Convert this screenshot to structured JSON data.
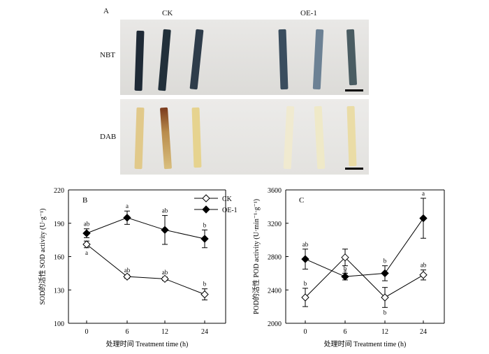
{
  "panel_a": {
    "label": "A",
    "group_ck": "CK",
    "group_oe": "OE-1",
    "row_nbt": "NBT",
    "row_dab": "DAB"
  },
  "chart_data": [
    {
      "panel": "B",
      "type": "line",
      "x": [
        0,
        6,
        12,
        24
      ],
      "categories": [
        "0",
        "6",
        "12",
        "24"
      ],
      "xlabel": "处理时间 Treatment time (h)",
      "ylabel": "SOD的活性 SOD activity (U·g⁻¹)",
      "ylim": [
        100,
        220
      ],
      "yticks": [
        100,
        130,
        160,
        190,
        220
      ],
      "legend": {
        "placement": "top-right",
        "entries": [
          "CK",
          "OE-1"
        ]
      },
      "series": [
        {
          "name": "CK",
          "marker": "open-diamond",
          "values": [
            171,
            142,
            140,
            126
          ],
          "errors": [
            3,
            1.5,
            1.5,
            5
          ],
          "letters": [
            "a",
            "ab",
            "ab",
            "b"
          ],
          "letter_pos": [
            "below",
            "above",
            "above",
            "above"
          ]
        },
        {
          "name": "OE-1",
          "marker": "filled-diamond",
          "values": [
            181,
            195,
            184,
            176
          ],
          "errors": [
            4,
            6,
            13,
            8
          ],
          "letters": [
            "ab",
            "a",
            "ab",
            "b"
          ],
          "letter_pos": [
            "above",
            "above",
            "above",
            "above"
          ]
        }
      ]
    },
    {
      "panel": "C",
      "type": "line",
      "x": [
        0,
        6,
        12,
        24
      ],
      "categories": [
        "0",
        "6",
        "12",
        "24"
      ],
      "xlabel": "处理时间 Treatment time (h)",
      "ylabel": "POD的活性 POD activity (U·min⁻¹·g⁻¹)",
      "ylim": [
        2000,
        3600
      ],
      "yticks": [
        2000,
        2400,
        2800,
        3200,
        3600
      ],
      "series": [
        {
          "name": "CK",
          "marker": "open-diamond",
          "values": [
            2310,
            2790,
            2310,
            2580
          ],
          "errors": [
            110,
            100,
            120,
            60
          ],
          "letters": [
            "b",
            "a",
            "b",
            "ab"
          ],
          "letter_pos": [
            "above",
            "below",
            "below",
            "above"
          ]
        },
        {
          "name": "OE-1",
          "marker": "filled-diamond",
          "values": [
            2770,
            2560,
            2600,
            3260
          ],
          "errors": [
            120,
            40,
            90,
            240
          ],
          "letters": [
            "ab",
            "b",
            "b",
            "a"
          ],
          "letter_pos": [
            "above",
            "above",
            "above",
            "above"
          ]
        }
      ]
    }
  ]
}
